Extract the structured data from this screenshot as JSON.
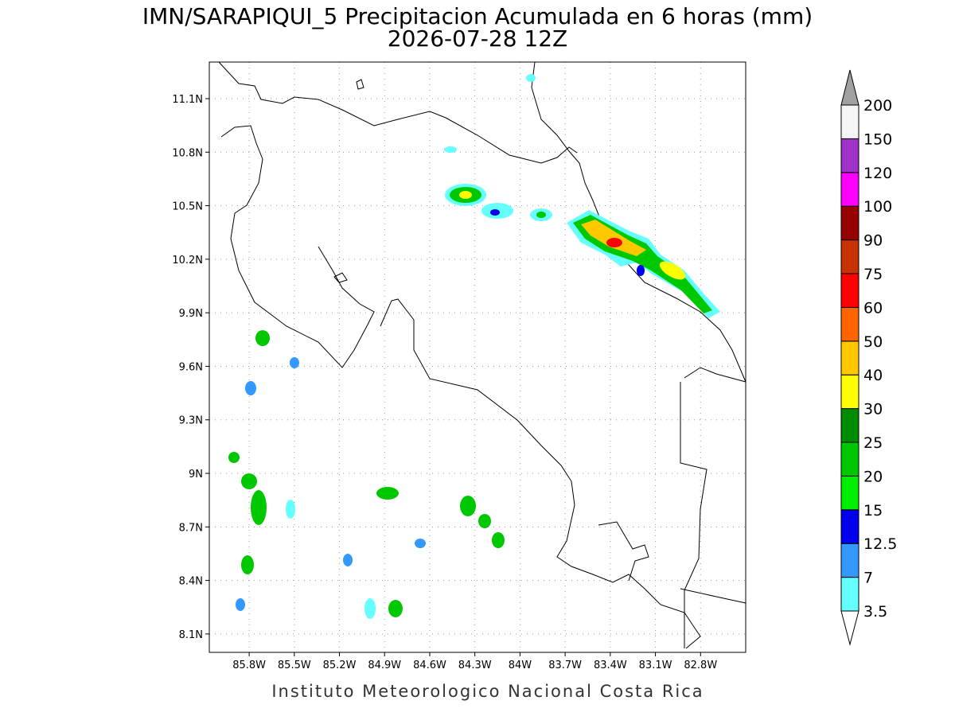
{
  "header": {
    "title": "IMN/SARAPIQUI_5 Precipitacion Acumulada en 6 horas (mm)",
    "subtitle": "2026-07-28 12Z"
  },
  "map": {
    "lonlim": [
      -86.065,
      -82.5
    ],
    "latlim": [
      7.997,
      11.305
    ],
    "lonticks": [
      {
        "value": -85.8,
        "label": "85.8W"
      },
      {
        "value": -85.5,
        "label": "85.5W"
      },
      {
        "value": -85.2,
        "label": "85.2W"
      },
      {
        "value": -84.9,
        "label": "84.9W"
      },
      {
        "value": -84.6,
        "label": "84.6W"
      },
      {
        "value": -84.3,
        "label": "84.3W"
      },
      {
        "value": -84,
        "label": "84W"
      },
      {
        "value": -83.7,
        "label": "83.7W"
      },
      {
        "value": -83.4,
        "label": "83.4W"
      },
      {
        "value": -83.1,
        "label": "83.1W"
      },
      {
        "value": -82.8,
        "label": "82.8W"
      }
    ],
    "latticks": [
      {
        "value": 8.1,
        "label": "8.1N"
      },
      {
        "value": 8.4,
        "label": "8.4N"
      },
      {
        "value": 8.7,
        "label": "8.7N"
      },
      {
        "value": 9,
        "label": "9N"
      },
      {
        "value": 9.3,
        "label": "9.3N"
      },
      {
        "value": 9.6,
        "label": "9.6N"
      },
      {
        "value": 9.9,
        "label": "9.9N"
      },
      {
        "value": 10.2,
        "label": "10.2N"
      },
      {
        "value": 10.5,
        "label": "10.5N"
      },
      {
        "value": 10.8,
        "label": "10.8N"
      },
      {
        "value": 11.1,
        "label": "11.1N"
      }
    ],
    "grid": true
  },
  "colorbar": {
    "levels": [
      3.5,
      7,
      12.5,
      15,
      20,
      25,
      30,
      40,
      50,
      60,
      75,
      90,
      100,
      120,
      150,
      200
    ],
    "colors": [
      "#66ffff",
      "#3399ff",
      "#0000ee",
      "#00ee00",
      "#00c800",
      "#008c00",
      "#ffff00",
      "#ffc800",
      "#ff6400",
      "#ff0000",
      "#c83200",
      "#960000",
      "#ff00ff",
      "#a032c8",
      "#f5f5f5"
    ],
    "under_color": "#ffffff",
    "over_color": "#a0a0a0"
  },
  "footer": {
    "text": "Instituto Meteorologico Nacional Costa Rica"
  }
}
